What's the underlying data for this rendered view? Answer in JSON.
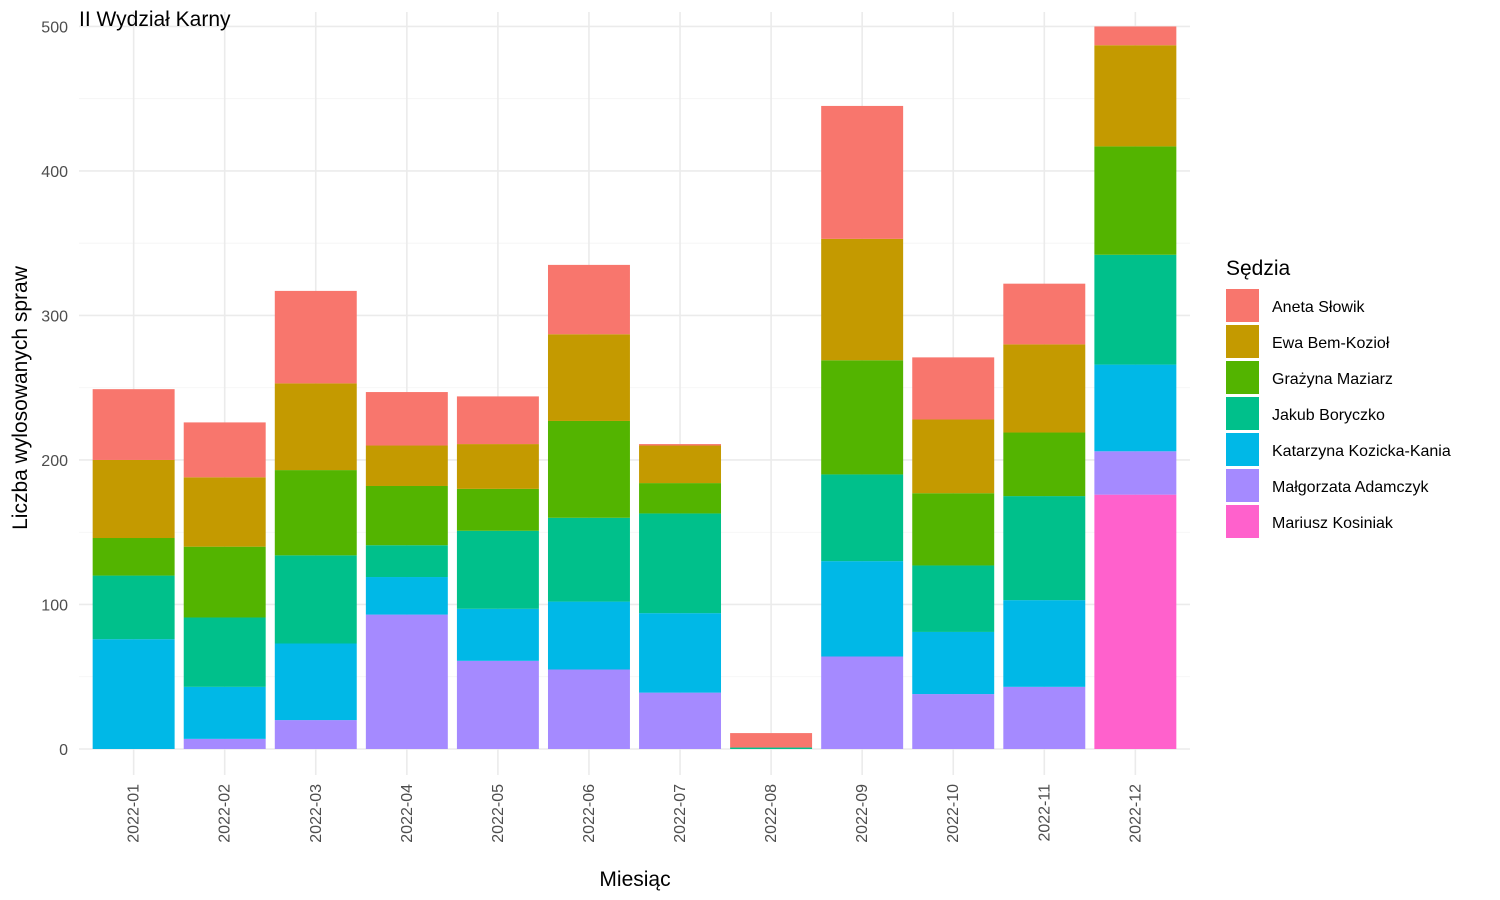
{
  "chart_data": {
    "type": "bar",
    "stacked": true,
    "title": "II Wydział Karny",
    "xlabel": "Miesiąc",
    "ylabel": "Liczba wylosowanych spraw",
    "ylim": [
      -18,
      510
    ],
    "yticks": [
      0,
      100,
      200,
      300,
      400,
      500
    ],
    "grid": true,
    "legend": {
      "title": "Sędzia",
      "position": "right"
    },
    "categories": [
      "2022-01",
      "2022-02",
      "2022-03",
      "2022-04",
      "2022-05",
      "2022-06",
      "2022-07",
      "2022-08",
      "2022-09",
      "2022-10",
      "2022-11",
      "2022-12"
    ],
    "series": [
      {
        "name": "Mariusz Kosiniak",
        "color": "#FF61CC",
        "values": [
          0,
          0,
          0,
          0,
          0,
          0,
          0,
          0,
          0,
          0,
          0,
          176
        ]
      },
      {
        "name": "Małgorzata Adamczyk",
        "color": "#A58AFF",
        "values": [
          0,
          7,
          20,
          93,
          61,
          55,
          39,
          0,
          64,
          38,
          43,
          30
        ]
      },
      {
        "name": "Katarzyna Kozicka-Kania",
        "color": "#00B8E7",
        "values": [
          76,
          36,
          53,
          26,
          36,
          47,
          55,
          0,
          66,
          43,
          60,
          60
        ]
      },
      {
        "name": "Jakub Boryczko",
        "color": "#00C08B",
        "values": [
          44,
          48,
          61,
          22,
          54,
          58,
          69,
          1,
          60,
          46,
          72,
          76
        ]
      },
      {
        "name": "Grażyna Maziarz",
        "color": "#53B400",
        "values": [
          26,
          49,
          59,
          41,
          29,
          67,
          21,
          0,
          79,
          50,
          44,
          75
        ]
      },
      {
        "name": "Ewa Bem-Kozioł",
        "color": "#C49A00",
        "values": [
          54,
          48,
          60,
          28,
          31,
          60,
          26,
          0,
          84,
          51,
          61,
          70
        ]
      },
      {
        "name": "Aneta Słowik",
        "color": "#F8766D",
        "values": [
          49,
          38,
          64,
          37,
          33,
          48,
          1,
          10,
          92,
          43,
          42,
          13
        ]
      }
    ],
    "legend_order": [
      "Aneta Słowik",
      "Ewa Bem-Kozioł",
      "Grażyna Maziarz",
      "Jakub Boryczko",
      "Katarzyna Kozicka-Kania",
      "Małgorzata Adamczyk",
      "Mariusz Kosiniak"
    ]
  }
}
